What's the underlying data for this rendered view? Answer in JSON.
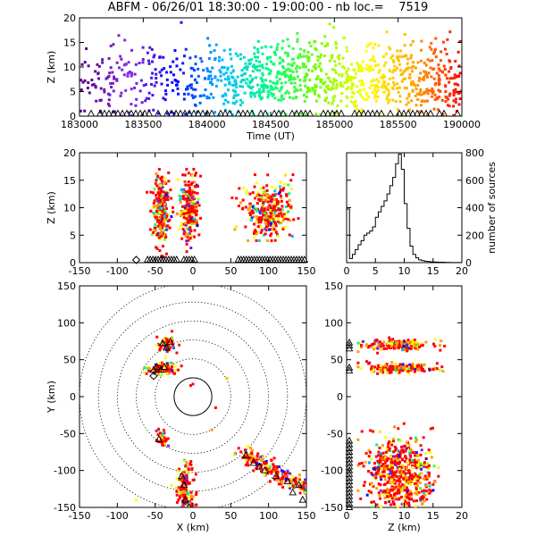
{
  "title": "ABFM - 06/26/01 18:30:00 - 19:00:00 - nb loc.=    7519",
  "chart_data": [
    {
      "id": "time_height",
      "type": "scatter",
      "xlabel": "Time (UT)",
      "ylabel": "Z (km)",
      "xlim": [
        183000,
        190000
      ],
      "ylim": [
        0,
        20
      ],
      "xticks": [
        "183000",
        "183500",
        "184000",
        "184500",
        "185000",
        "185500",
        "190000"
      ],
      "yticks": [
        "0",
        "5",
        "10",
        "15",
        "20"
      ],
      "color_by": "time",
      "colormap": [
        "#4b0082",
        "#8a2be2",
        "#0000ff",
        "#00bfff",
        "#00ff7f",
        "#7cfc00",
        "#ffff00",
        "#ffa500",
        "#ff0000"
      ],
      "density": [
        {
          "x": 183000,
          "zmin": 3,
          "zmax": 13,
          "n": 12
        },
        {
          "x": 183100,
          "zmin": 3,
          "zmax": 14,
          "n": 18
        },
        {
          "x": 183200,
          "zmin": 2,
          "zmax": 14,
          "n": 24
        },
        {
          "x": 183300,
          "zmin": 3,
          "zmax": 15,
          "n": 18
        },
        {
          "x": 183400,
          "zmin": 2,
          "zmax": 15,
          "n": 18
        },
        {
          "x": 183500,
          "zmin": 3,
          "zmax": 16,
          "n": 20
        },
        {
          "x": 183600,
          "zmin": 3,
          "zmax": 15,
          "n": 18
        },
        {
          "x": 183700,
          "zmin": 4,
          "zmax": 14,
          "n": 18
        },
        {
          "x": 183800,
          "zmin": 3,
          "zmax": 15,
          "n": 20
        },
        {
          "x": 183900,
          "zmin": 2,
          "zmax": 15,
          "n": 22
        },
        {
          "x": 184000,
          "zmin": 3,
          "zmax": 15,
          "n": 30
        },
        {
          "x": 184100,
          "zmin": 2,
          "zmax": 15,
          "n": 34
        },
        {
          "x": 184200,
          "zmin": 2,
          "zmax": 15,
          "n": 40
        },
        {
          "x": 184300,
          "zmin": 3,
          "zmax": 16,
          "n": 44
        },
        {
          "x": 184400,
          "zmin": 3,
          "zmax": 15,
          "n": 48
        },
        {
          "x": 184500,
          "zmin": 3,
          "zmax": 16,
          "n": 50
        },
        {
          "x": 184600,
          "zmin": 3,
          "zmax": 15,
          "n": 50
        },
        {
          "x": 184700,
          "zmin": 3,
          "zmax": 16,
          "n": 48
        },
        {
          "x": 184800,
          "zmin": 3,
          "zmax": 16,
          "n": 44
        },
        {
          "x": 184900,
          "zmin": 2,
          "zmax": 16,
          "n": 40
        },
        {
          "x": 185000,
          "zmin": 2,
          "zmax": 17,
          "n": 40
        },
        {
          "x": 185100,
          "zmin": 2,
          "zmax": 16,
          "n": 40
        },
        {
          "x": 185200,
          "zmin": 3,
          "zmax": 16,
          "n": 36
        },
        {
          "x": 185300,
          "zmin": 3,
          "zmax": 16,
          "n": 40
        },
        {
          "x": 185400,
          "zmin": 2,
          "zmax": 15,
          "n": 44
        },
        {
          "x": 185500,
          "zmin": 2,
          "zmax": 16,
          "n": 40
        },
        {
          "x": 185600,
          "zmin": 2,
          "zmax": 16,
          "n": 44
        },
        {
          "x": 185700,
          "zmin": 3,
          "zmax": 16,
          "n": 44
        },
        {
          "x": 185800,
          "zmin": 2,
          "zmax": 15,
          "n": 40
        },
        {
          "x": 185900,
          "zmin": 2,
          "zmax": 16,
          "n": 40
        }
      ],
      "ground_markers": "triangles along Z=0 baseline"
    },
    {
      "id": "x_height",
      "type": "scatter",
      "ylabel": "Z (km)",
      "xlim": [
        -150,
        150
      ],
      "ylim": [
        0,
        20
      ],
      "xticks": [
        "-150",
        "-100",
        "-50",
        "0",
        "50",
        "100",
        "150"
      ],
      "yticks": [
        "0",
        "5",
        "10",
        "15",
        "20"
      ],
      "clusters": [
        {
          "x": -42,
          "sx": 6,
          "z": 9,
          "sz": 3.2,
          "zmin": 1,
          "zmax": 17,
          "n": 260
        },
        {
          "x": -5,
          "sx": 6,
          "z": 10,
          "sz": 2.8,
          "zmin": 2,
          "zmax": 17,
          "n": 220
        },
        {
          "x": 100,
          "sx": 16,
          "z": 9.5,
          "sz": 2.6,
          "zmin": 4,
          "zmax": 16,
          "n": 300
        }
      ],
      "ground_markers": "triangles along Z=0 at x=-60..-20, -10..0, 60..150"
    },
    {
      "id": "height_histogram",
      "type": "bar",
      "xlim": [
        0,
        20
      ],
      "ylim": [
        0,
        800
      ],
      "xticks": [
        "0",
        "5",
        "10",
        "15",
        "20"
      ],
      "yticks": [
        "0",
        "200",
        "400",
        "600",
        "800"
      ],
      "ylabel": "number of sources",
      "bin_width": 0.5,
      "bins_start": 0,
      "values": [
        390,
        30,
        60,
        95,
        130,
        160,
        200,
        215,
        230,
        260,
        330,
        370,
        410,
        450,
        500,
        560,
        620,
        720,
        790,
        680,
        430,
        250,
        120,
        60,
        35,
        20,
        15,
        10,
        8,
        6,
        5,
        4,
        3,
        3,
        2,
        2,
        1,
        1,
        1,
        1
      ]
    },
    {
      "id": "plan_view",
      "type": "scatter",
      "xlabel": "X (km)",
      "ylabel": "Y (km)",
      "xlim": [
        -150,
        150
      ],
      "ylim": [
        -150,
        150
      ],
      "xticks": [
        "-150",
        "-100",
        "-50",
        "0",
        "50",
        "100",
        "150"
      ],
      "yticks": [
        "-150",
        "-100",
        "-50",
        "0",
        "50",
        "100",
        "150"
      ],
      "range_rings_km": [
        25,
        50,
        75,
        100,
        125,
        150
      ],
      "clusters": [
        {
          "x": -35,
          "sx": 6,
          "y": 72,
          "sy": 5,
          "n": 60
        },
        {
          "x": -40,
          "sx": 10,
          "y": 38,
          "sy": 4,
          "n": 90
        },
        {
          "x": -40,
          "sx": 4,
          "y": -58,
          "sy": 6,
          "n": 40
        },
        {
          "x": -10,
          "sx": 6,
          "y": -125,
          "sy": 18,
          "n": 140
        },
        {
          "x": 110,
          "sx": 22,
          "y": -95,
          "sy": 14,
          "n": 180
        }
      ],
      "stations": [
        {
          "x": -40,
          "y": 72
        },
        {
          "x": -35,
          "y": 66
        },
        {
          "x": -30,
          "y": 74
        },
        {
          "x": -48,
          "y": 40
        },
        {
          "x": -42,
          "y": 36
        },
        {
          "x": -38,
          "y": 40
        },
        {
          "x": -52,
          "y": 36
        },
        {
          "x": -45,
          "y": -58
        },
        {
          "x": -15,
          "y": -108
        },
        {
          "x": -10,
          "y": -140
        },
        {
          "x": -5,
          "y": -150
        },
        {
          "x": -12,
          "y": -120
        },
        {
          "x": 70,
          "y": -80
        },
        {
          "x": 80,
          "y": -90
        },
        {
          "x": 95,
          "y": -100
        },
        {
          "x": 110,
          "y": -108
        },
        {
          "x": 125,
          "y": -115
        },
        {
          "x": 140,
          "y": -120
        },
        {
          "x": 132,
          "y": -130
        },
        {
          "x": 145,
          "y": -140
        },
        {
          "x": 88,
          "y": -95
        }
      ]
    },
    {
      "id": "height_y",
      "type": "scatter",
      "xlabel": "Z (km)",
      "xlim": [
        0,
        20
      ],
      "ylim": [
        -150,
        150
      ],
      "xticks": [
        "0",
        "5",
        "10",
        "15",
        "20"
      ],
      "yticks": [
        "-150",
        "-100",
        "-50",
        "0",
        "50",
        "100",
        "150"
      ],
      "clusters": [
        {
          "y": 70,
          "sy": 4,
          "z": 9,
          "sz": 3.2,
          "zmin": 2,
          "zmax": 17,
          "n": 140
        },
        {
          "y": 38,
          "sy": 3,
          "z": 9,
          "sz": 3.2,
          "zmin": 2,
          "zmax": 18,
          "n": 170
        },
        {
          "y": -105,
          "sy": 25,
          "z": 9,
          "sz": 2.8,
          "zmin": 2,
          "zmax": 18,
          "n": 600
        }
      ],
      "ground_markers": "triangles along Z=0 at Y=70, Y=40, Y=-60..-150"
    }
  ]
}
